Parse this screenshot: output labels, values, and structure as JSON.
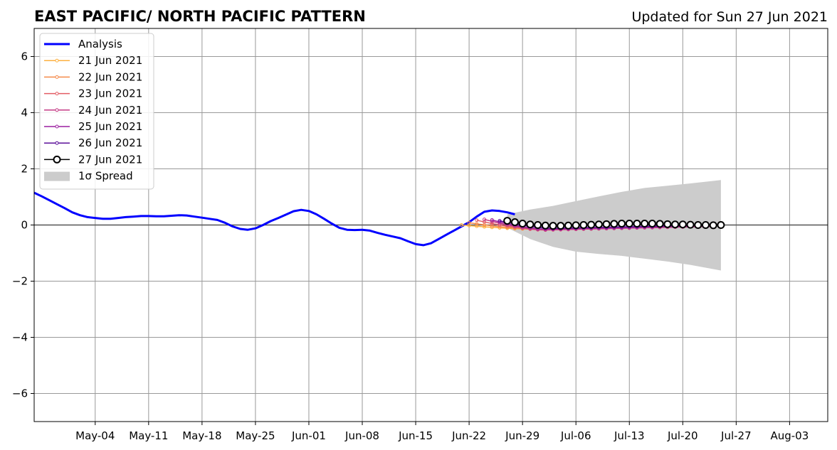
{
  "chart_data": {
    "type": "line",
    "title": "EAST PACIFIC/ NORTH PACIFIC PATTERN",
    "subtitle": "Updated for Sun 27 Jun 2021",
    "xlabel": "",
    "ylabel": "",
    "xlim": [
      "2021-04-26",
      "2021-08-08"
    ],
    "ylim": [
      -7,
      7
    ],
    "grid": true,
    "legend_position": "top-left",
    "x_ticks": [
      {
        "date": "2021-05-04",
        "label": "May-04"
      },
      {
        "date": "2021-05-11",
        "label": "May-11"
      },
      {
        "date": "2021-05-18",
        "label": "May-18"
      },
      {
        "date": "2021-05-25",
        "label": "May-25"
      },
      {
        "date": "2021-06-01",
        "label": "Jun-01"
      },
      {
        "date": "2021-06-08",
        "label": "Jun-08"
      },
      {
        "date": "2021-06-15",
        "label": "Jun-15"
      },
      {
        "date": "2021-06-22",
        "label": "Jun-22"
      },
      {
        "date": "2021-06-29",
        "label": "Jun-29"
      },
      {
        "date": "2021-07-06",
        "label": "Jul-06"
      },
      {
        "date": "2021-07-13",
        "label": "Jul-13"
      },
      {
        "date": "2021-07-20",
        "label": "Jul-20"
      },
      {
        "date": "2021-07-27",
        "label": "Jul-27"
      },
      {
        "date": "2021-08-03",
        "label": "Aug-03"
      }
    ],
    "y_ticks": [
      {
        "value": 6,
        "label": "6"
      },
      {
        "value": 4,
        "label": "4"
      },
      {
        "value": 2,
        "label": "2"
      },
      {
        "value": 0,
        "label": "0"
      },
      {
        "value": -2,
        "label": "−2"
      },
      {
        "value": -4,
        "label": "−4"
      },
      {
        "value": -6,
        "label": "−6"
      }
    ],
    "analysis": {
      "name": "Analysis",
      "color": "#0000ff",
      "points": [
        [
          "2021-04-26",
          1.15
        ],
        [
          "2021-04-27",
          1.02
        ],
        [
          "2021-04-28",
          0.88
        ],
        [
          "2021-04-29",
          0.74
        ],
        [
          "2021-04-30",
          0.6
        ],
        [
          "2021-05-01",
          0.45
        ],
        [
          "2021-05-02",
          0.35
        ],
        [
          "2021-05-03",
          0.28
        ],
        [
          "2021-05-04",
          0.25
        ],
        [
          "2021-05-05",
          0.22
        ],
        [
          "2021-05-06",
          0.22
        ],
        [
          "2021-05-07",
          0.25
        ],
        [
          "2021-05-08",
          0.28
        ],
        [
          "2021-05-09",
          0.3
        ],
        [
          "2021-05-10",
          0.32
        ],
        [
          "2021-05-11",
          0.32
        ],
        [
          "2021-05-12",
          0.31
        ],
        [
          "2021-05-13",
          0.31
        ],
        [
          "2021-05-14",
          0.33
        ],
        [
          "2021-05-15",
          0.35
        ],
        [
          "2021-05-16",
          0.34
        ],
        [
          "2021-05-17",
          0.3
        ],
        [
          "2021-05-18",
          0.26
        ],
        [
          "2021-05-19",
          0.22
        ],
        [
          "2021-05-20",
          0.18
        ],
        [
          "2021-05-21",
          0.08
        ],
        [
          "2021-05-22",
          -0.05
        ],
        [
          "2021-05-23",
          -0.14
        ],
        [
          "2021-05-24",
          -0.17
        ],
        [
          "2021-05-25",
          -0.12
        ],
        [
          "2021-05-26",
          0.0
        ],
        [
          "2021-05-27",
          0.14
        ],
        [
          "2021-05-28",
          0.25
        ],
        [
          "2021-05-29",
          0.37
        ],
        [
          "2021-05-30",
          0.49
        ],
        [
          "2021-05-31",
          0.54
        ],
        [
          "2021-06-01",
          0.5
        ],
        [
          "2021-06-02",
          0.38
        ],
        [
          "2021-06-03",
          0.22
        ],
        [
          "2021-06-04",
          0.05
        ],
        [
          "2021-06-05",
          -0.1
        ],
        [
          "2021-06-06",
          -0.17
        ],
        [
          "2021-06-07",
          -0.18
        ],
        [
          "2021-06-08",
          -0.17
        ],
        [
          "2021-06-09",
          -0.2
        ],
        [
          "2021-06-10",
          -0.28
        ],
        [
          "2021-06-11",
          -0.35
        ],
        [
          "2021-06-12",
          -0.41
        ],
        [
          "2021-06-13",
          -0.47
        ],
        [
          "2021-06-14",
          -0.58
        ],
        [
          "2021-06-15",
          -0.68
        ],
        [
          "2021-06-16",
          -0.72
        ],
        [
          "2021-06-17",
          -0.65
        ],
        [
          "2021-06-18",
          -0.5
        ],
        [
          "2021-06-19",
          -0.35
        ],
        [
          "2021-06-20",
          -0.2
        ],
        [
          "2021-06-21",
          -0.05
        ],
        [
          "2021-06-22",
          0.1
        ],
        [
          "2021-06-23",
          0.3
        ],
        [
          "2021-06-24",
          0.47
        ],
        [
          "2021-06-25",
          0.52
        ],
        [
          "2021-06-26",
          0.5
        ],
        [
          "2021-06-27",
          0.45
        ],
        [
          "2021-06-28",
          0.38
        ]
      ]
    },
    "series": [
      {
        "name": "21 Jun 2021",
        "color": "#fcb040",
        "start": "2021-06-21",
        "y0": 0.0,
        "dip": -0.15,
        "dip_day": 10,
        "end": -0.02
      },
      {
        "name": "22 Jun 2021",
        "color": "#f58a4a",
        "start": "2021-06-22",
        "y0": 0.08,
        "dip": -0.15,
        "dip_day": 9,
        "end": -0.03
      },
      {
        "name": "23 Jun 2021",
        "color": "#e25c64",
        "start": "2021-06-23",
        "y0": 0.17,
        "dip": -0.18,
        "dip_day": 9,
        "end": -0.04
      },
      {
        "name": "24 Jun 2021",
        "color": "#c43b85",
        "start": "2021-06-24",
        "y0": 0.2,
        "dip": -0.17,
        "dip_day": 8,
        "end": -0.05
      },
      {
        "name": "25 Jun 2021",
        "color": "#9c1fa0",
        "start": "2021-06-25",
        "y0": 0.18,
        "dip": -0.15,
        "dip_day": 7,
        "end": -0.02
      },
      {
        "name": "26 Jun 2021",
        "color": "#5b0f9a",
        "start": "2021-06-26",
        "y0": 0.15,
        "dip": -0.12,
        "dip_day": 7,
        "end": 0.0
      }
    ],
    "forecast": {
      "name": "27 Jun 2021",
      "color": "#000000",
      "points": [
        [
          "2021-06-27",
          0.15
        ],
        [
          "2021-06-28",
          0.1
        ],
        [
          "2021-06-29",
          0.05
        ],
        [
          "2021-06-30",
          0.02
        ],
        [
          "2021-07-01",
          0.0
        ],
        [
          "2021-07-02",
          -0.02
        ],
        [
          "2021-07-03",
          -0.03
        ],
        [
          "2021-07-04",
          -0.03
        ],
        [
          "2021-07-05",
          -0.02
        ],
        [
          "2021-07-06",
          -0.01
        ],
        [
          "2021-07-07",
          0.0
        ],
        [
          "2021-07-08",
          0.01
        ],
        [
          "2021-07-09",
          0.02
        ],
        [
          "2021-07-10",
          0.03
        ],
        [
          "2021-07-11",
          0.04
        ],
        [
          "2021-07-12",
          0.05
        ],
        [
          "2021-07-13",
          0.05
        ],
        [
          "2021-07-14",
          0.05
        ],
        [
          "2021-07-15",
          0.05
        ],
        [
          "2021-07-16",
          0.05
        ],
        [
          "2021-07-17",
          0.04
        ],
        [
          "2021-07-18",
          0.03
        ],
        [
          "2021-07-19",
          0.02
        ],
        [
          "2021-07-20",
          0.02
        ],
        [
          "2021-07-21",
          0.01
        ],
        [
          "2021-07-22",
          0.0
        ],
        [
          "2021-07-23",
          0.0
        ],
        [
          "2021-07-24",
          -0.01
        ],
        [
          "2021-07-25",
          0.0
        ]
      ]
    },
    "spread": {
      "name": "1σ Spread",
      "color": "#cccccc",
      "points": [
        [
          "2021-06-27",
          0.38,
          -0.1
        ],
        [
          "2021-06-30",
          0.55,
          -0.5
        ],
        [
          "2021-07-03",
          0.68,
          -0.78
        ],
        [
          "2021-07-06",
          0.85,
          -0.95
        ],
        [
          "2021-07-09",
          1.02,
          -1.03
        ],
        [
          "2021-07-12",
          1.18,
          -1.1
        ],
        [
          "2021-07-15",
          1.32,
          -1.2
        ],
        [
          "2021-07-18",
          1.4,
          -1.3
        ],
        [
          "2021-07-21",
          1.48,
          -1.42
        ],
        [
          "2021-07-25",
          1.6,
          -1.62
        ]
      ]
    }
  }
}
